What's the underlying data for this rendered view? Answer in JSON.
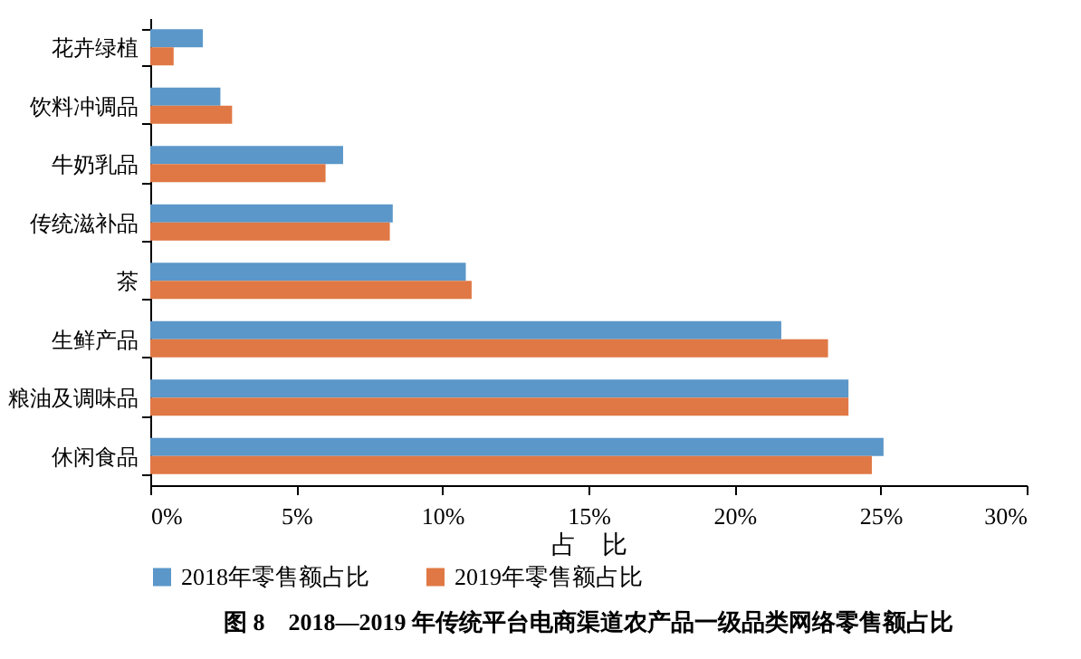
{
  "chart_data": {
    "type": "bar",
    "orientation": "horizontal",
    "title": "图 8　2018—2019 年传统平台电商渠道农产品一级品类网络零售额占比",
    "xlabel": "占　比",
    "categories": [
      "花卉绿植",
      "饮料冲调品",
      "牛奶乳品",
      "传统滋补品",
      "茶",
      "生鲜产品",
      "粮油及调味品",
      "休闲食品"
    ],
    "series": [
      {
        "name": "2018年零售额占比",
        "color": "#5b97c9",
        "values": [
          1.8,
          2.4,
          6.6,
          8.3,
          10.8,
          21.6,
          23.9,
          25.1
        ]
      },
      {
        "name": "2019年零售额占比",
        "color": "#e07845",
        "values": [
          0.8,
          2.8,
          6.0,
          8.2,
          11.0,
          23.2,
          23.9,
          24.7
        ]
      }
    ],
    "xlim": [
      0,
      30
    ],
    "xticks": [
      {
        "value": 0,
        "label": "0%"
      },
      {
        "value": 5,
        "label": "5%"
      },
      {
        "value": 10,
        "label": "10%"
      },
      {
        "value": 15,
        "label": "15%"
      },
      {
        "value": 20,
        "label": "20%"
      },
      {
        "value": 25,
        "label": "25%"
      },
      {
        "value": 30,
        "label": "30%"
      }
    ],
    "grid": false,
    "legend": "bottom"
  }
}
